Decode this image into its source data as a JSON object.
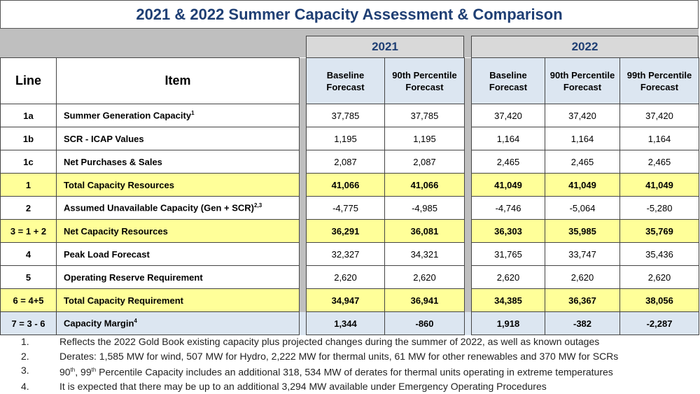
{
  "title": "2021 & 2022 Summer Capacity Assessment & Comparison",
  "years": [
    "2021",
    "2022"
  ],
  "headers": {
    "line": "Line",
    "item": "Item",
    "cols": [
      [
        "Baseline",
        "Forecast"
      ],
      [
        "90th Percentile",
        "Forecast"
      ],
      [
        "Baseline",
        "Forecast"
      ],
      [
        "90th Percentile",
        "Forecast"
      ],
      [
        "99th Percentile",
        "Forecast"
      ]
    ]
  },
  "rows": [
    {
      "line": "1a",
      "item": "Summer Generation Capacity",
      "sup": "1",
      "values": [
        "37,785",
        "37,785",
        "37,420",
        "37,420",
        "37,420"
      ],
      "style": "w"
    },
    {
      "line": "1b",
      "item": "SCR - ICAP Values",
      "sup": "",
      "values": [
        "1,195",
        "1,195",
        "1,164",
        "1,164",
        "1,164"
      ],
      "style": "w"
    },
    {
      "line": "1c",
      "item": "Net Purchases & Sales",
      "sup": "",
      "values": [
        "2,087",
        "2,087",
        "2,465",
        "2,465",
        "2,465"
      ],
      "style": "w"
    },
    {
      "line": "1",
      "item": "Total Capacity Resources",
      "sup": "",
      "values": [
        "41,066",
        "41,066",
        "41,049",
        "41,049",
        "41,049"
      ],
      "style": "y"
    },
    {
      "line": "2",
      "item": "Assumed Unavailable Capacity (Gen + SCR)",
      "sup": "2,3",
      "values": [
        "-4,775",
        "-4,985",
        "-4,746",
        "-5,064",
        "-5,280"
      ],
      "style": "w"
    },
    {
      "line": "3 = 1 + 2",
      "item": "Net Capacity Resources",
      "sup": "",
      "values": [
        "36,291",
        "36,081",
        "36,303",
        "35,985",
        "35,769"
      ],
      "style": "y"
    },
    {
      "line": "4",
      "item": "Peak Load Forecast",
      "sup": "",
      "values": [
        "32,327",
        "34,321",
        "31,765",
        "33,747",
        "35,436"
      ],
      "style": "w"
    },
    {
      "line": "5",
      "item": "Operating Reserve Requirement",
      "sup": "",
      "values": [
        "2,620",
        "2,620",
        "2,620",
        "2,620",
        "2,620"
      ],
      "style": "w"
    },
    {
      "line": "6 = 4+5",
      "item": "Total Capacity Requirement",
      "sup": "",
      "values": [
        "34,947",
        "36,941",
        "34,385",
        "36,367",
        "38,056"
      ],
      "style": "y"
    },
    {
      "line": "7 = 3 - 6",
      "item": "Capacity Margin",
      "sup": "4",
      "values": [
        "1,344",
        "-860",
        "1,918",
        "-382",
        "-2,287"
      ],
      "style": "b"
    }
  ],
  "notes": [
    {
      "n": "1.",
      "parts": [
        "Reflects the 2022 Gold Book existing capacity plus projected changes during the summer of 2022, as well as known outages"
      ]
    },
    {
      "n": "2.",
      "parts": [
        "Derates: 1,585 MW for wind, 507 MW for Hydro, 2,222 MW for thermal units, 61 MW for other renewables and 370 MW for SCRs"
      ]
    },
    {
      "n": "3.",
      "parts": [
        "90",
        "th",
        ", 99",
        "th",
        " Percentile Capacity includes an additional 318, 534 MW of derates for thermal units operating in extreme temperatures"
      ]
    },
    {
      "n": "4.",
      "parts": [
        "It is expected that there may be up to an additional 3,294 MW available under Emergency Operating Procedures"
      ]
    }
  ],
  "colors": {
    "title": "#1f3f74",
    "highlight_row": "#ffff99",
    "header_fill": "#dce6f1",
    "band": "#bfbfbf"
  }
}
